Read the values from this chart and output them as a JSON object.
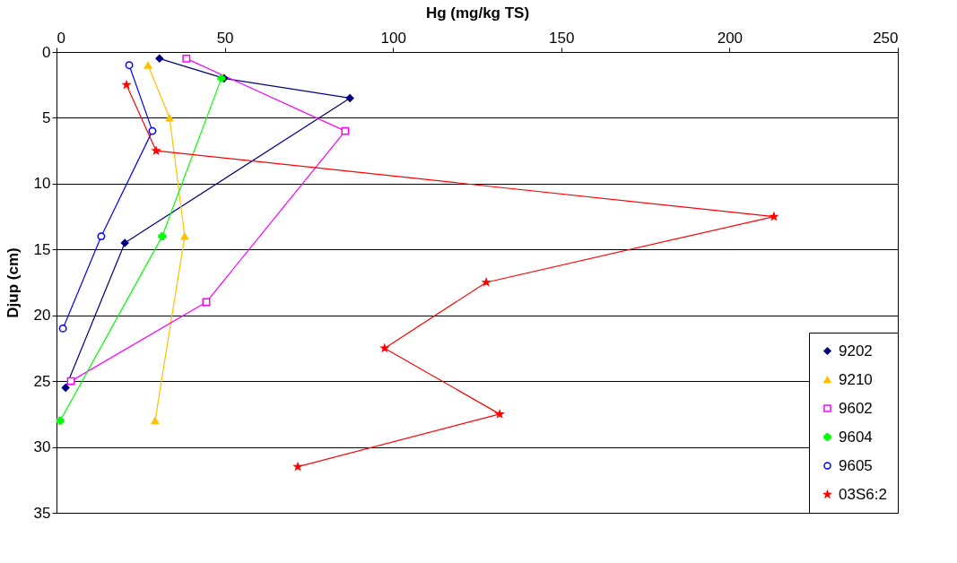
{
  "chart_data": {
    "type": "line",
    "xlabel": "Hg (mg/kg TS)",
    "ylabel": "Djup (cm)",
    "xlim": [
      0,
      250
    ],
    "xticks": [
      0,
      50,
      100,
      150,
      200,
      250
    ],
    "ylim": [
      35,
      0
    ],
    "yticks": [
      0,
      5,
      10,
      15,
      20,
      25,
      30,
      35
    ],
    "grid": "y",
    "legend": "bottom right",
    "line_style": "solid",
    "series": [
      {
        "name": "9202",
        "color": "#000080",
        "marker": "diamond",
        "x": [
          30.6,
          49.8,
          87.2,
          20.3,
          2.7
        ],
        "values": [
          0.5,
          2,
          3.5,
          14.5,
          25.5
        ]
      },
      {
        "name": "9210",
        "color": "#ffc000",
        "marker": "triangle",
        "x": [
          27.2,
          33.6,
          38.1,
          29.3
        ],
        "values": [
          1,
          5,
          14,
          28
        ]
      },
      {
        "name": "9602",
        "color": "#ff00ff",
        "marker": "square",
        "x": [
          38.6,
          85.8,
          44.5,
          4.3
        ],
        "values": [
          0.5,
          6,
          19,
          25
        ]
      },
      {
        "name": "9604",
        "color": "#00ff00",
        "marker": "cross",
        "x": [
          49,
          31.4,
          1.1
        ],
        "values": [
          2,
          14,
          28
        ]
      },
      {
        "name": "9605",
        "color": "#0000ff",
        "marker": "circle",
        "x": [
          21.6,
          28.5,
          13.3,
          1.9
        ],
        "values": [
          1,
          6,
          14,
          21
        ]
      },
      {
        "name": "03S6:2",
        "color": "#ff0000",
        "marker": "star",
        "x": [
          20.8,
          29.6,
          213.2,
          127.7,
          97.5,
          131.7,
          71.7
        ],
        "values": [
          2.5,
          7.5,
          12.5,
          17.5,
          22.5,
          27.5,
          31.5
        ]
      }
    ]
  }
}
